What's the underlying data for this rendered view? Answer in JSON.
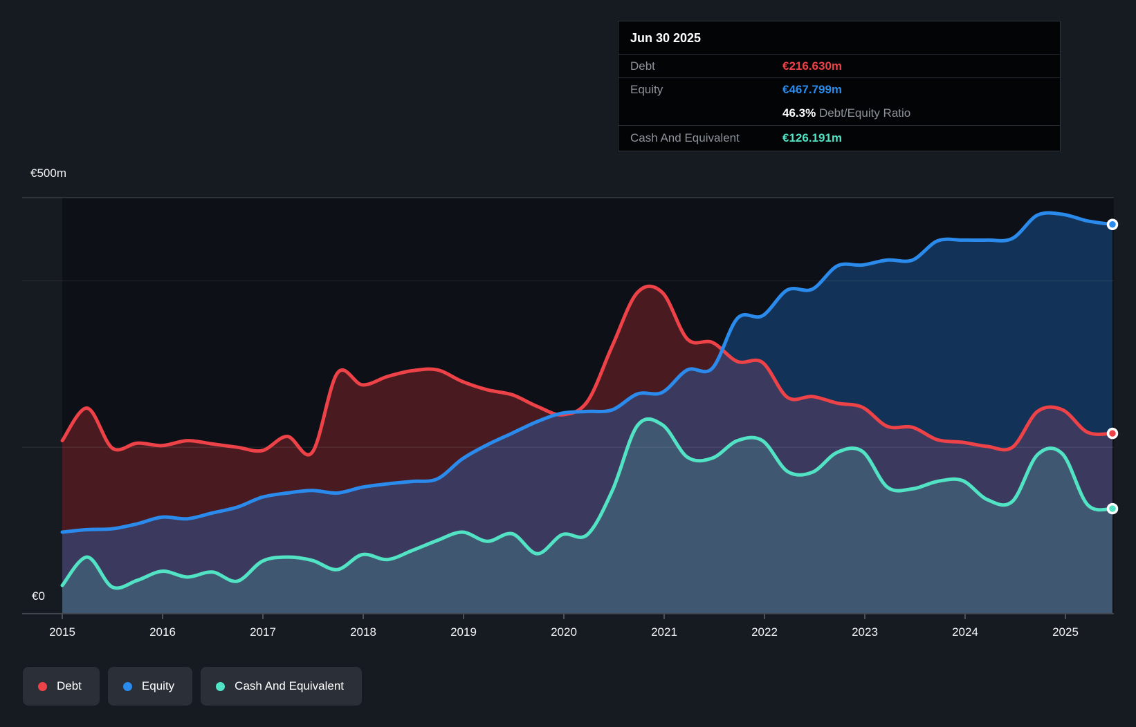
{
  "y_axis": {
    "top": "€500m",
    "zero": "€0"
  },
  "x_axis": {
    "years": [
      "2015",
      "2016",
      "2017",
      "2018",
      "2019",
      "2020",
      "2021",
      "2022",
      "2023",
      "2024",
      "2025"
    ]
  },
  "tooltip": {
    "date": "Jun 30 2025",
    "debt_label": "Debt",
    "debt_value": "€216.630m",
    "equity_label": "Equity",
    "equity_value": "€467.799m",
    "ratio_value": "46.3%",
    "ratio_label": "Debt/Equity Ratio",
    "cash_label": "Cash And Equivalent",
    "cash_value": "€126.191m"
  },
  "legend": {
    "items": [
      {
        "label": "Debt",
        "color": "#ed4247"
      },
      {
        "label": "Equity",
        "color": "#2b8bec"
      },
      {
        "label": "Cash And Equivalent",
        "color": "#52e3c5"
      }
    ]
  },
  "colors": {
    "background": "#161a21",
    "plot_background": "#0d1016",
    "debt": "#ed4247",
    "equity": "#2b8bec",
    "cash": "#52e3c5"
  },
  "chart_data": {
    "type": "area",
    "title": "",
    "unit": "€ millions",
    "x_start_year": 2015,
    "x_step_years": 0.25,
    "x_end_year": 2025.5,
    "ylim": [
      0,
      500
    ],
    "gridlines_m": [
      200,
      400,
      500
    ],
    "grid": "horizontal-only",
    "legend_position": "bottom-left",
    "series": [
      {
        "name": "Debt",
        "color": "#ed4247",
        "fill": "rgba(231,57,63,0.28)",
        "values_m": [
          208,
          247,
          199,
          205,
          202,
          208,
          204,
          200,
          196,
          213,
          194,
          289,
          275,
          285,
          292,
          293,
          279,
          269,
          263,
          249,
          239,
          255,
          322,
          386,
          386,
          330,
          326,
          303,
          302,
          260,
          261,
          253,
          248,
          225,
          224,
          209,
          206,
          201,
          200,
          243,
          245,
          218,
          216.63
        ]
      },
      {
        "name": "Equity",
        "color": "#2b8bec",
        "fill": "rgba(33,118,215,0.34)",
        "values_m": [
          98,
          101,
          102,
          108,
          116,
          114,
          121,
          128,
          140,
          145,
          148,
          145,
          152,
          156,
          159,
          162,
          186,
          203,
          217,
          231,
          241,
          243,
          245,
          264,
          266,
          293,
          295,
          355,
          358,
          389,
          390,
          418,
          419,
          425,
          425,
          448,
          449,
          449,
          451,
          479,
          480,
          472,
          467.8
        ]
      },
      {
        "name": "Cash And Equivalent",
        "color": "#52e3c5",
        "fill": "rgba(82,227,197,0.18)",
        "values_m": [
          34,
          68,
          32,
          40,
          51,
          44,
          50,
          39,
          63,
          68,
          64,
          53,
          71,
          65,
          76,
          88,
          98,
          87,
          96,
          72,
          95,
          95,
          148,
          226,
          227,
          188,
          187,
          208,
          208,
          171,
          170,
          194,
          195,
          152,
          150,
          159,
          160,
          137,
          135,
          191,
          192,
          131,
          126.19
        ]
      }
    ],
    "endpoint_values_m": {
      "debt": 216.63,
      "equity": 467.799,
      "cash": 126.191
    }
  }
}
